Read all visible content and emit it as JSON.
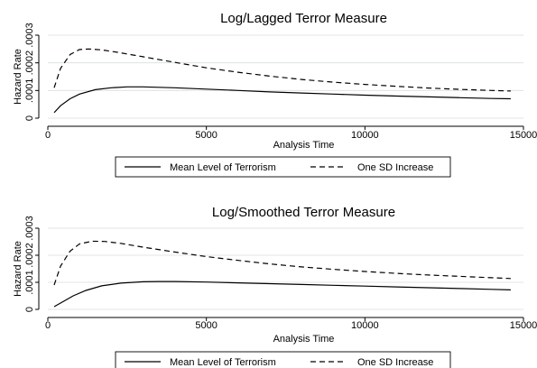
{
  "chart_data": [
    {
      "type": "line",
      "title": "Log/Lagged Terror Measure",
      "xlabel": "Analysis Time",
      "ylabel": "Hazard Rate",
      "xlim": [
        0,
        15000
      ],
      "ylim": [
        0,
        0.0003
      ],
      "xticks": [
        0,
        5000,
        10000,
        15000
      ],
      "xtick_labels": [
        "0",
        "5000",
        "10000",
        "15000"
      ],
      "yticks": [
        0,
        0.0001,
        0.0002,
        0.0003
      ],
      "ytick_labels": [
        "0",
        ".0001",
        ".0002",
        ".0003"
      ],
      "grid": true,
      "legend_position": "bottom",
      "series": [
        {
          "name": "Mean Level of Terrorism",
          "style": "solid",
          "x": [
            200,
            400,
            700,
            1000,
            1500,
            2000,
            2500,
            3000,
            4000,
            5000,
            6000,
            7000,
            8000,
            9000,
            10000,
            11000,
            12000,
            13000,
            14000,
            14600
          ],
          "y": [
            2e-05,
            4.5e-05,
            7e-05,
            8.7e-05,
            0.000103,
            0.00011,
            0.000113,
            0.000113,
            0.00011,
            0.000105,
            0.0001,
            9.5e-05,
            9.1e-05,
            8.7e-05,
            8.3e-05,
            8e-05,
            7.7e-05,
            7.4e-05,
            7.1e-05,
            7e-05
          ]
        },
        {
          "name": "One SD Increase",
          "style": "dashed",
          "x": [
            200,
            400,
            700,
            1000,
            1300,
            1700,
            2200,
            3000,
            4000,
            5000,
            6000,
            7000,
            8000,
            9000,
            10000,
            11000,
            12000,
            13000,
            14000,
            14600
          ],
          "y": [
            0.00011,
            0.00018,
            0.00023,
            0.000248,
            0.00025,
            0.000247,
            0.000238,
            0.000222,
            0.000202,
            0.000182,
            0.000166,
            0.000152,
            0.00014,
            0.00013,
            0.000122,
            0.000115,
            0.000109,
            0.000104,
            0.0001,
            9.8e-05
          ]
        }
      ]
    },
    {
      "type": "line",
      "title": "Log/Smoothed Terror Measure",
      "xlabel": "Analysis Time",
      "ylabel": "Hazard Rate",
      "xlim": [
        0,
        15000
      ],
      "ylim": [
        0,
        0.0003
      ],
      "xticks": [
        0,
        5000,
        10000,
        15000
      ],
      "xtick_labels": [
        "0",
        "5000",
        "10000",
        "15000"
      ],
      "yticks": [
        0,
        0.0001,
        0.0002,
        0.0003
      ],
      "ytick_labels": [
        "0",
        ".0001",
        ".0002",
        ".0003"
      ],
      "grid": true,
      "legend_position": "bottom",
      "series": [
        {
          "name": "Mean Level of Terrorism",
          "style": "solid",
          "x": [
            200,
            500,
            800,
            1200,
            1700,
            2300,
            3000,
            3500,
            4000,
            5000,
            6000,
            7000,
            8000,
            9000,
            10000,
            11000,
            12000,
            13000,
            14000,
            14600
          ],
          "y": [
            1e-05,
            3e-05,
            5e-05,
            7e-05,
            8.7e-05,
            9.7e-05,
            0.000102,
            0.000103,
            0.000103,
            0.000101,
            9.8e-05,
            9.5e-05,
            9.2e-05,
            8.9e-05,
            8.6e-05,
            8.3e-05,
            8e-05,
            7.7e-05,
            7.4e-05,
            7.2e-05
          ]
        },
        {
          "name": "One SD Increase",
          "style": "dashed",
          "x": [
            200,
            400,
            700,
            1000,
            1400,
            1800,
            2300,
            3000,
            4000,
            5000,
            6000,
            7000,
            8000,
            9000,
            10000,
            11000,
            12000,
            13000,
            14000,
            14600
          ],
          "y": [
            9e-05,
            0.00016,
            0.000215,
            0.000242,
            0.000252,
            0.000251,
            0.000244,
            0.00023,
            0.000212,
            0.000195,
            0.000181,
            0.000168,
            0.000157,
            0.000148,
            0.00014,
            0.000133,
            0.000127,
            0.000122,
            0.000117,
            0.000114
          ]
        }
      ]
    }
  ]
}
